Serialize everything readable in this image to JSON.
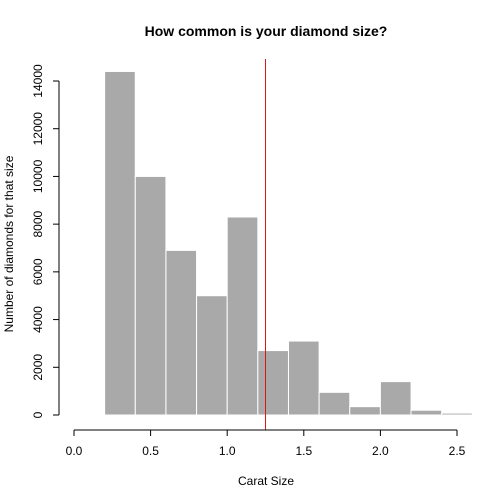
{
  "chart_data": {
    "type": "bar",
    "title": "How common is your diamond size?",
    "xlabel": "Carat Size",
    "ylabel": "Number of diamonds for that size",
    "xlim": [
      0.0,
      2.6
    ],
    "ylim": [
      0,
      14000
    ],
    "x_ticks": [
      0.0,
      0.5,
      1.0,
      1.5,
      2.0,
      2.5
    ],
    "x_tick_labels": [
      "0.0",
      "0.5",
      "1.0",
      "1.5",
      "2.0",
      "2.5"
    ],
    "y_ticks": [
      0,
      2000,
      4000,
      6000,
      8000,
      10000,
      12000,
      14000
    ],
    "y_tick_labels": [
      "0",
      "2000",
      "4000",
      "6000",
      "8000",
      "10000",
      "12000",
      "14000"
    ],
    "bins": [
      {
        "start": 0.2,
        "end": 0.4,
        "count": 14400
      },
      {
        "start": 0.4,
        "end": 0.6,
        "count": 10000
      },
      {
        "start": 0.6,
        "end": 0.8,
        "count": 6900
      },
      {
        "start": 0.8,
        "end": 1.0,
        "count": 5000
      },
      {
        "start": 1.0,
        "end": 1.2,
        "count": 8300
      },
      {
        "start": 1.2,
        "end": 1.4,
        "count": 2700
      },
      {
        "start": 1.4,
        "end": 1.6,
        "count": 3100
      },
      {
        "start": 1.6,
        "end": 1.8,
        "count": 950
      },
      {
        "start": 1.8,
        "end": 2.0,
        "count": 350
      },
      {
        "start": 2.0,
        "end": 2.2,
        "count": 1400
      },
      {
        "start": 2.2,
        "end": 2.4,
        "count": 200
      },
      {
        "start": 2.4,
        "end": 2.6,
        "count": 80
      }
    ],
    "reference_line": {
      "x": 1.25,
      "color": "#d7191c"
    },
    "bar_color": "#a9a9a9",
    "grid": false,
    "legend": "none"
  }
}
